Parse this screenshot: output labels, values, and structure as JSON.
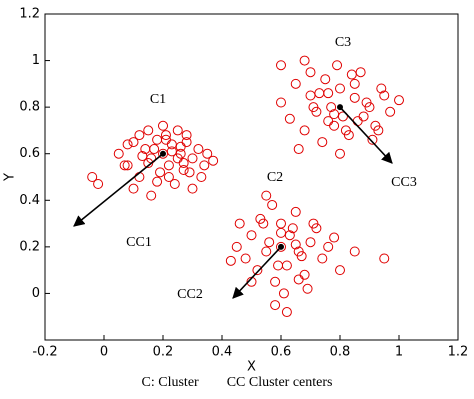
{
  "chart_data": {
    "type": "scatter",
    "xlabel": "X",
    "ylabel": "Y",
    "caption": "C: Cluster        CC Cluster centers",
    "xlim": [
      -0.2,
      1.2
    ],
    "ylim": [
      -0.2,
      1.2
    ],
    "xticks": [
      -0.2,
      0,
      0.2,
      0.4,
      0.6,
      0.8,
      1,
      1.2
    ],
    "yticks": [
      0,
      0.2,
      0.4,
      0.6,
      0.8,
      1,
      1.2
    ],
    "annotations": [
      "C1",
      "C2",
      "C3",
      "CC1",
      "CC2",
      "CC3"
    ],
    "series": [
      {
        "color": "#e00000",
        "x": [
          0.05,
          0.08,
          0.1,
          0.12,
          0.14,
          0.15,
          0.16,
          0.18,
          0.19,
          0.2,
          0.21,
          0.22,
          0.23,
          0.24,
          0.25,
          0.26,
          0.27,
          0.28,
          0.3,
          0.32,
          0.33,
          0.35,
          0.1,
          0.12,
          0.15,
          0.17,
          0.2,
          0.22,
          0.25,
          0.28,
          0.3,
          0.13,
          0.18,
          0.23,
          0.27,
          0.08,
          0.34,
          0.16,
          0.21,
          0.26,
          -0.04,
          -0.02,
          0.07,
          0.29,
          0.37
        ],
        "y": [
          0.6,
          0.55,
          0.65,
          0.5,
          0.62,
          0.7,
          0.58,
          0.66,
          0.52,
          0.6,
          0.68,
          0.55,
          0.64,
          0.47,
          0.7,
          0.6,
          0.53,
          0.65,
          0.58,
          0.62,
          0.5,
          0.6,
          0.45,
          0.68,
          0.56,
          0.62,
          0.72,
          0.5,
          0.58,
          0.68,
          0.45,
          0.59,
          0.48,
          0.61,
          0.56,
          0.64,
          0.55,
          0.42,
          0.66,
          0.63,
          0.5,
          0.47,
          0.55,
          0.52,
          0.57
        ]
      },
      {
        "color": "#e00000",
        "x": [
          0.45,
          0.48,
          0.5,
          0.52,
          0.54,
          0.55,
          0.56,
          0.58,
          0.6,
          0.6,
          0.62,
          0.63,
          0.65,
          0.66,
          0.68,
          0.7,
          0.72,
          0.74,
          0.76,
          0.8,
          0.5,
          0.53,
          0.57,
          0.59,
          0.61,
          0.64,
          0.67,
          0.69,
          0.71,
          0.58,
          0.62,
          0.66,
          0.43,
          0.78,
          0.85,
          0.55,
          0.6,
          0.65,
          0.46,
          0.95
        ],
        "y": [
          0.2,
          0.15,
          0.25,
          0.1,
          0.3,
          0.18,
          0.22,
          0.05,
          0.2,
          0.3,
          0.12,
          0.25,
          0.35,
          0.18,
          0.08,
          0.22,
          0.28,
          0.15,
          0.2,
          0.1,
          0.05,
          0.32,
          0.38,
          0.12,
          0.0,
          0.28,
          0.16,
          0.02,
          0.3,
          -0.05,
          -0.08,
          0.06,
          0.14,
          0.24,
          0.18,
          0.42,
          0.26,
          0.21,
          0.3,
          0.15
        ]
      },
      {
        "color": "#e00000",
        "x": [
          0.6,
          0.63,
          0.65,
          0.68,
          0.7,
          0.72,
          0.74,
          0.75,
          0.77,
          0.78,
          0.8,
          0.81,
          0.83,
          0.85,
          0.87,
          0.9,
          0.92,
          0.95,
          0.97,
          1.0,
          0.66,
          0.7,
          0.73,
          0.76,
          0.79,
          0.82,
          0.85,
          0.88,
          0.91,
          0.94,
          0.71,
          0.76,
          0.8,
          0.84,
          0.89,
          0.6,
          0.68,
          0.86,
          0.93,
          0.78
        ],
        "y": [
          0.82,
          0.75,
          0.9,
          0.7,
          0.85,
          0.78,
          0.65,
          0.92,
          0.8,
          0.72,
          0.88,
          0.76,
          0.68,
          0.84,
          0.95,
          0.8,
          0.72,
          0.85,
          0.78,
          0.83,
          0.62,
          0.95,
          0.86,
          0.74,
          0.98,
          0.7,
          0.9,
          0.76,
          0.66,
          0.88,
          0.8,
          0.86,
          0.6,
          0.94,
          0.82,
          0.98,
          1.0,
          0.74,
          0.7,
          0.77
        ]
      },
      {
        "color": "#000000",
        "x": [
          0.2,
          0.6,
          0.8
        ],
        "y": [
          0.6,
          0.2,
          0.8
        ]
      }
    ]
  }
}
